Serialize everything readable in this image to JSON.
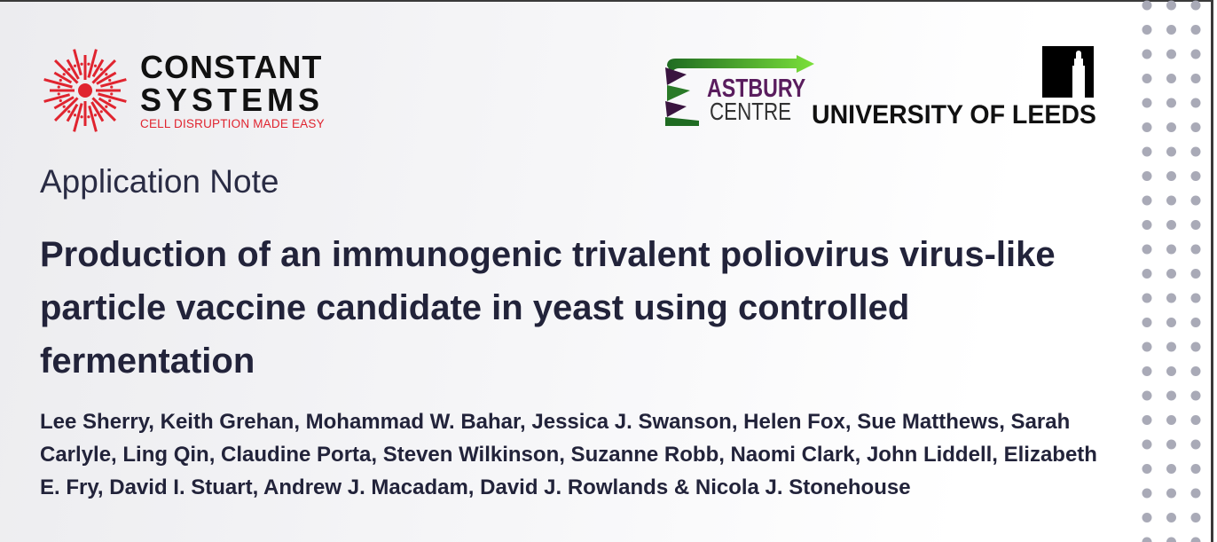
{
  "logos": {
    "constant_systems": {
      "line1": "CONSTANT",
      "line2": "SYSTEMS",
      "tagline": "CELL DISRUPTION MADE EASY"
    },
    "astbury": {
      "line1": "ASTBURY",
      "line2": "CENTRE"
    },
    "leeds": {
      "name": "UNIVERSITY OF LEEDS"
    }
  },
  "document": {
    "label": "Application Note",
    "title": "Production of an immunogenic trivalent poliovirus virus-like particle vaccine candidate in yeast using controlled fermentation",
    "authors": "Lee Sherry, Keith Grehan, Mohammad W. Bahar, Jessica J. Swanson, Helen Fox, Sue Matthews, Sarah Carlyle, Ling Qin, Claudine Porta, Steven Wilkinson, Suzanne Robb, Naomi Clark, John Liddell, Elizabeth E. Fry, David I. Stuart, Andrew J. Macadam, David J. Rowlands & Nicola J. Stonehouse"
  },
  "colors": {
    "brand_red": "#e0242f",
    "astbury_purple": "#5a1d5e",
    "astbury_green": "#2f8a2a",
    "dots": "#a9aab7",
    "text": "#22233a"
  }
}
